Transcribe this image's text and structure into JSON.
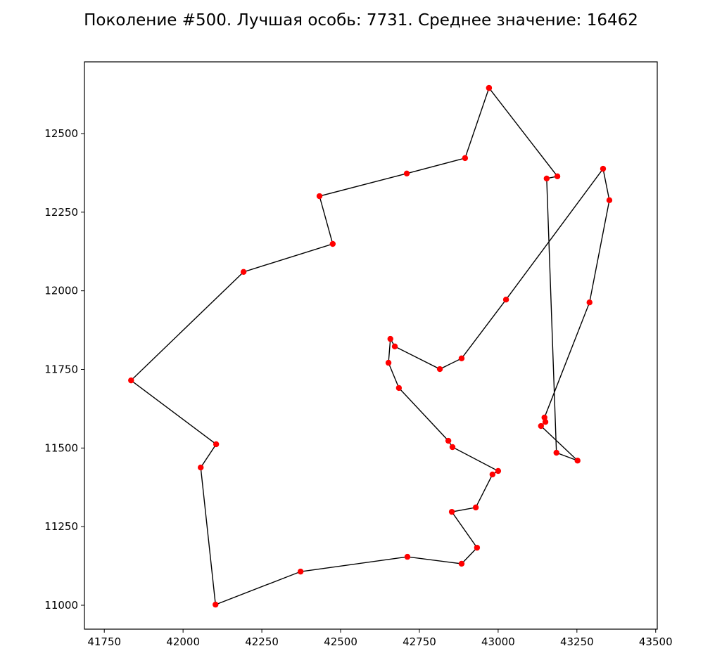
{
  "chart_data": {
    "type": "line",
    "title": "Поколение #500. Лучшая особь: 7731. Среднее значение: 16462",
    "series": [
      {
        "color": "#000000",
        "marker_color": "#ff0000",
        "x": [
          42971,
          43188,
          43154,
          43185,
          43252,
          43136,
          43150,
          43147,
          43290,
          43353,
          43333,
          43025,
          42884,
          42815,
          42672,
          42658,
          42652,
          42685,
          42842,
          42855,
          43000,
          42982,
          42929,
          42853,
          42933,
          42884,
          42712,
          42373,
          42103,
          42056,
          42105,
          41835,
          42192,
          42475,
          42433,
          42710,
          42895,
          42971
        ],
        "values": [
          12645,
          12364,
          12357,
          11485,
          11460,
          11570,
          11583,
          11597,
          11963,
          12288,
          12388,
          11972,
          11785,
          11751,
          11823,
          11847,
          11771,
          11691,
          11523,
          11503,
          11427,
          11416,
          11311,
          11297,
          11183,
          11132,
          11154,
          11107,
          11002,
          11438,
          11512,
          11715,
          12060,
          12149,
          12301,
          12373,
          12422,
          12645
        ]
      }
    ],
    "xlim": [
      41687,
      43505
    ],
    "ylim": [
      10924,
      12728
    ],
    "xticks": [
      41750,
      42000,
      42250,
      42500,
      42750,
      43000,
      43250,
      43500
    ],
    "yticks": [
      11000,
      11250,
      11500,
      11750,
      12000,
      12250,
      12500
    ],
    "grid": false
  }
}
